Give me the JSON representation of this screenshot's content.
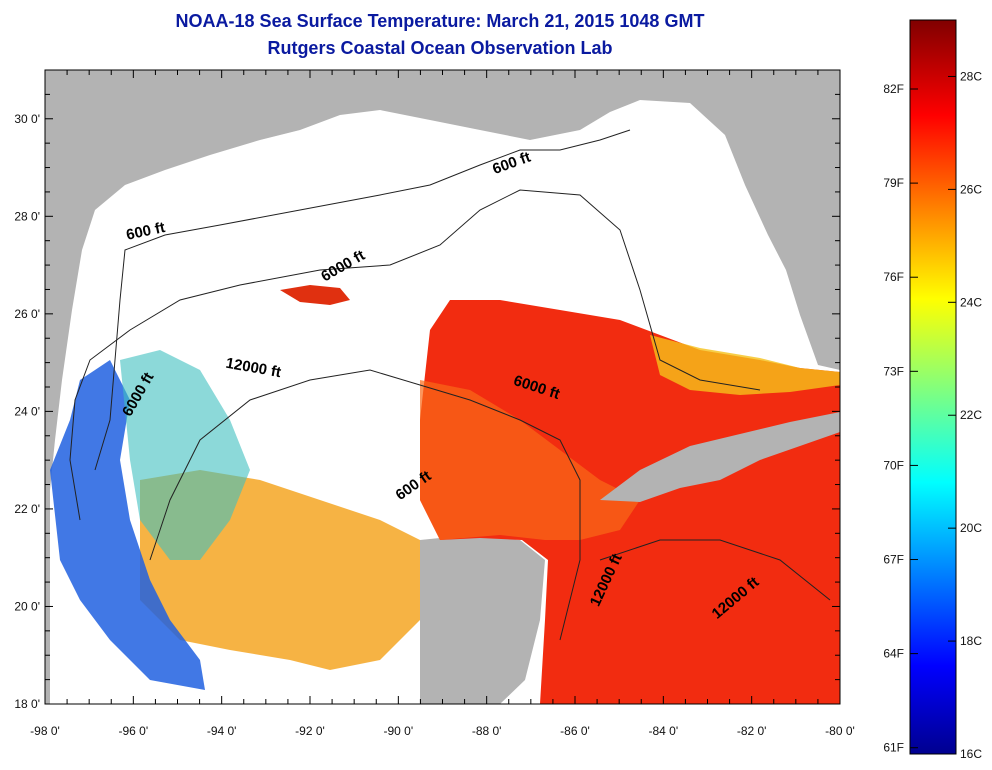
{
  "title": "NOAA-18 Sea Surface Temperature:  March 21, 2015 1048 GMT",
  "subtitle": "Rutgers Coastal Ocean Observation Lab",
  "map": {
    "lon_range": [
      -98,
      -80
    ],
    "lat_range": [
      18,
      31
    ],
    "x_ticks": [
      "-98 0'",
      "-96 0'",
      "-94 0'",
      "-92 0'",
      "-90 0'",
      "-88 0'",
      "-86 0'",
      "-84 0'",
      "-82 0'",
      "-80 0'"
    ],
    "y_ticks": [
      "18 0'",
      "20 0'",
      "22 0'",
      "24 0'",
      "26 0'",
      "28 0'",
      "30 0'"
    ],
    "contour_labels": [
      {
        "text": "600 ft",
        "lon": -87.4,
        "lat": 29.0
      },
      {
        "text": "600 ft",
        "lon": -95.7,
        "lat": 27.6
      },
      {
        "text": "6000 ft",
        "lon": -91.2,
        "lat": 26.9
      },
      {
        "text": "12000 ft",
        "lon": -93.3,
        "lat": 24.8
      },
      {
        "text": "6000 ft",
        "lon": -95.8,
        "lat": 24.3
      },
      {
        "text": "6000 ft",
        "lon": -86.9,
        "lat": 24.4
      },
      {
        "text": "600 ft",
        "lon": -89.6,
        "lat": 22.4
      },
      {
        "text": "12000 ft",
        "lon": -85.2,
        "lat": 20.5
      },
      {
        "text": "12000 ft",
        "lon": -82.3,
        "lat": 20.1
      }
    ],
    "colors": {
      "land": "#b3b3b3",
      "no_data": "#ffffff",
      "warm": "#f03010"
    }
  },
  "colorbar": {
    "range_c": [
      16,
      29
    ],
    "fahrenheit_labels": [
      "82F",
      "79F",
      "76F",
      "73F",
      "70F",
      "67F",
      "64F",
      "61F"
    ],
    "celsius_labels": [
      "28C",
      "26C",
      "24C",
      "22C",
      "20C",
      "18C",
      "16C"
    ],
    "colors": [
      "#00008f",
      "#0000ff",
      "#00ffff",
      "#ffff00",
      "#ff0000",
      "#800000"
    ]
  }
}
